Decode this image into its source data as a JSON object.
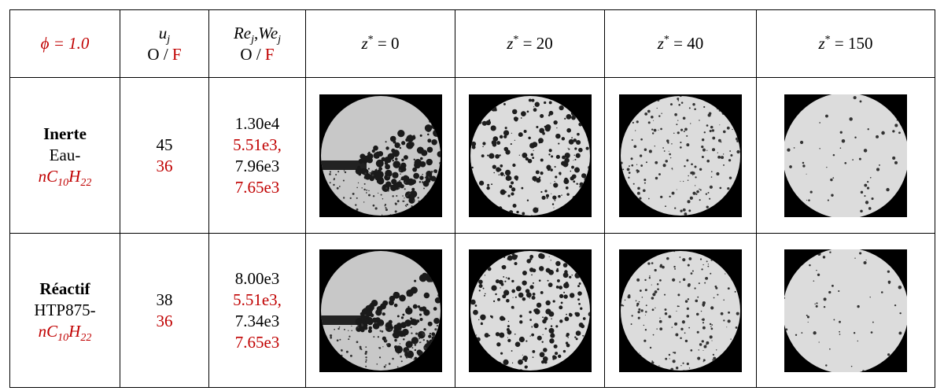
{
  "table": {
    "header": [
      {
        "text": "ϕ = 1.0"
      },
      {
        "symbol": "u",
        "sub": "j",
        "o": "O /",
        "f": "F"
      },
      {
        "re": "Re",
        "re_sub": "j",
        "comma": ",",
        "we": "We",
        "we_sub": "j",
        "o": "O /",
        "f": "F"
      },
      {
        "z": "z",
        "sup": "*",
        "eq": "= 0"
      },
      {
        "z": "z",
        "sup": "*",
        "eq": "= 20"
      },
      {
        "z": "z",
        "sup": "*",
        "eq": "= 40"
      },
      {
        "z": "z",
        "sup": "*",
        "eq": "= 150"
      }
    ],
    "rows": [
      {
        "name": "Inerte",
        "fluid": "Eau-",
        "fuel": [
          "nC",
          "10",
          "H",
          "22"
        ],
        "u_o": 45,
        "u_f": 36,
        "numbers": [
          "1.30e4",
          "5.51e3,",
          "7.96e3",
          "7.65e3"
        ]
      },
      {
        "name": "Réactif",
        "fluid": "HTP875-",
        "fuel": [
          "nC",
          "10",
          "H",
          "22"
        ],
        "u_o": 38,
        "u_f": 36,
        "numbers": [
          "8.00e3",
          "5.51e3,",
          "7.34e3",
          "7.65e3"
        ]
      }
    ]
  }
}
